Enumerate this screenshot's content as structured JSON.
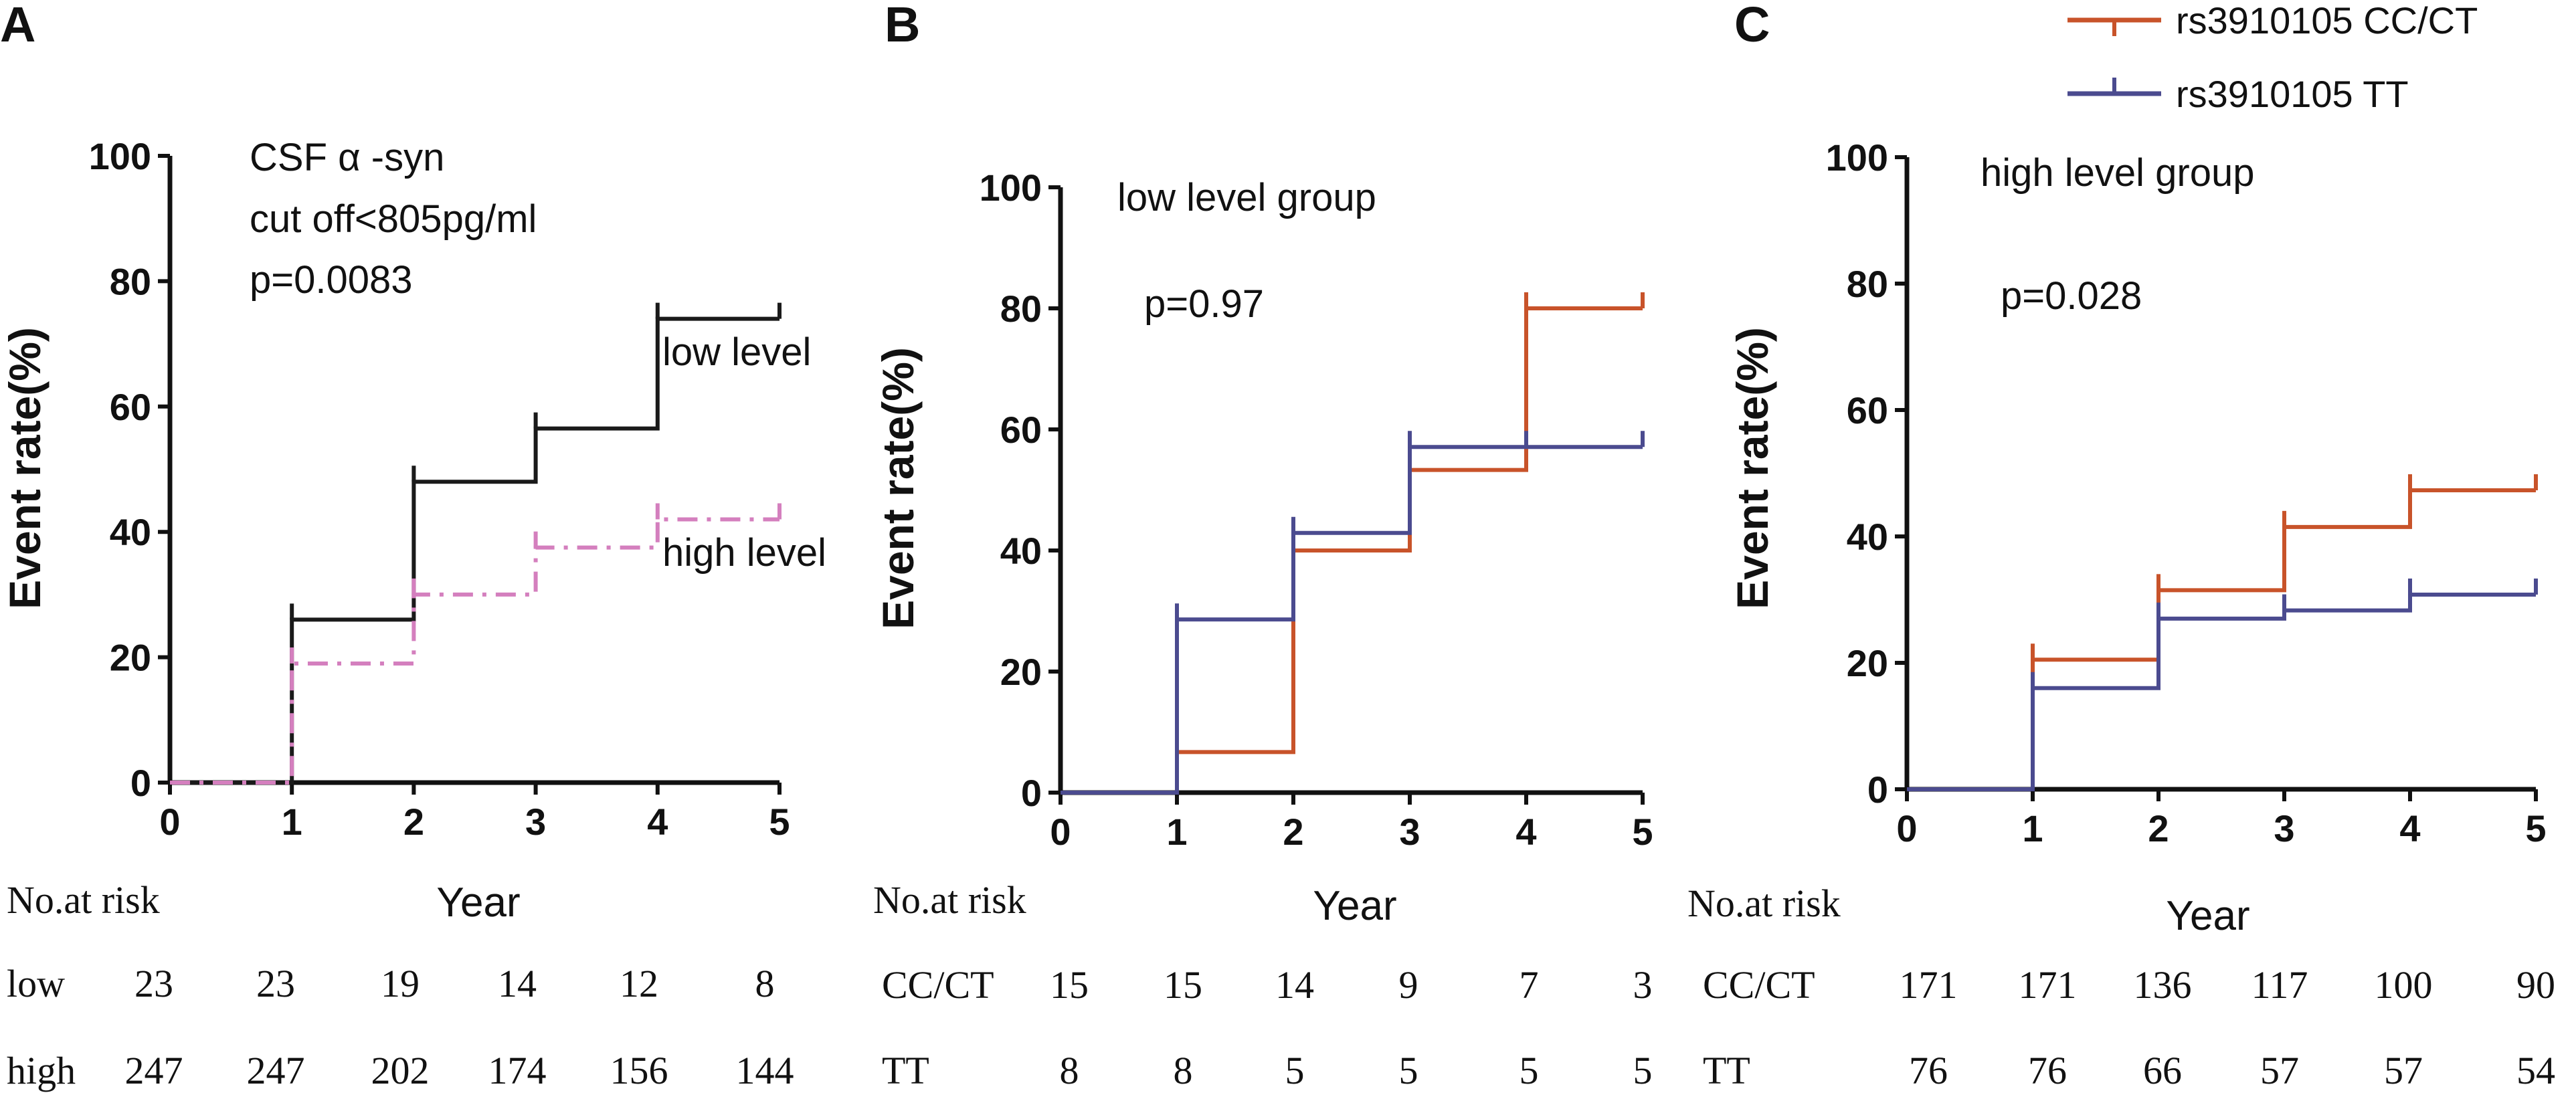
{
  "chart_data": [
    {
      "panel": "A",
      "type": "line",
      "step": true,
      "xlabel": "Year",
      "ylabel": "Event rate(%)",
      "xlim": [
        0,
        5
      ],
      "ylim": [
        0,
        100
      ],
      "xticks": [
        "0",
        "1",
        "2",
        "3",
        "4",
        "5"
      ],
      "yticks": [
        "0",
        "20",
        "40",
        "60",
        "80",
        "100"
      ],
      "annotations": [
        "CSF  α -syn",
        "cut off<805pg/ml",
        "p=0.0083"
      ],
      "series": [
        {
          "name": "low level",
          "color": "#1a1a1a",
          "dash": "solid",
          "x": [
            0,
            1,
            1,
            2,
            2,
            3,
            3,
            4,
            4,
            5
          ],
          "y": [
            0,
            0,
            26,
            26,
            48,
            48,
            56.5,
            56.5,
            74,
            74
          ]
        },
        {
          "name": "high level",
          "color": "#d47fbe",
          "dash": "dashdot",
          "x": [
            0,
            1,
            1,
            2,
            2,
            3,
            3,
            4,
            4,
            5
          ],
          "y": [
            0,
            0,
            19,
            19,
            30,
            30,
            37.5,
            37.5,
            42,
            42
          ]
        }
      ],
      "risk_table": {
        "header": "No.at risk",
        "rows": [
          {
            "label": "low",
            "values": [
              "23",
              "23",
              "19",
              "14",
              "12",
              "8"
            ]
          },
          {
            "label": "high",
            "values": [
              "247",
              "247",
              "202",
              "174",
              "156",
              "144"
            ]
          }
        ]
      }
    },
    {
      "panel": "B",
      "type": "line",
      "step": true,
      "xlabel": "Year",
      "ylabel": "Event rate(%)",
      "xlim": [
        0,
        5
      ],
      "ylim": [
        0,
        100
      ],
      "xticks": [
        "0",
        "1",
        "2",
        "3",
        "4",
        "5"
      ],
      "yticks": [
        "0",
        "20",
        "40",
        "60",
        "80",
        "100"
      ],
      "annotations": [
        "low level group",
        "p=0.97"
      ],
      "series": [
        {
          "name": "rs3910105 CC/CT",
          "color": "#c8532a",
          "dash": "solid",
          "x": [
            0,
            1,
            1,
            2,
            2,
            3,
            3,
            4,
            4,
            5
          ],
          "y": [
            0,
            0,
            6.7,
            6.7,
            40,
            40,
            53.3,
            53.3,
            80,
            80
          ]
        },
        {
          "name": "rs3910105 TT",
          "color": "#4b4b8f",
          "dash": "solid",
          "x": [
            0,
            1,
            1,
            2,
            2,
            3,
            3,
            4,
            4,
            5
          ],
          "y": [
            0,
            0,
            28.6,
            28.6,
            42.9,
            42.9,
            57.1,
            57.1,
            57.1,
            57.1
          ]
        }
      ],
      "risk_table": {
        "header": "No.at risk",
        "rows": [
          {
            "label": "CC/CT",
            "values": [
              "15",
              "15",
              "14",
              "9",
              "7",
              "3"
            ]
          },
          {
            "label": "TT",
            "values": [
              "8",
              "8",
              "5",
              "5",
              "5",
              "5"
            ]
          }
        ]
      }
    },
    {
      "panel": "C",
      "type": "line",
      "step": true,
      "xlabel": "Year",
      "ylabel": "Event rate(%)",
      "xlim": [
        0,
        5
      ],
      "ylim": [
        0,
        100
      ],
      "xticks": [
        "0",
        "1",
        "2",
        "3",
        "4",
        "5"
      ],
      "yticks": [
        "0",
        "20",
        "40",
        "60",
        "80",
        "100"
      ],
      "annotations": [
        "high level group",
        "p=0.028"
      ],
      "series": [
        {
          "name": "rs3910105 CC/CT",
          "color": "#c8532a",
          "dash": "solid",
          "x": [
            0,
            1,
            1,
            2,
            2,
            3,
            3,
            4,
            4,
            5
          ],
          "y": [
            0,
            0,
            20.5,
            20.5,
            31.5,
            31.5,
            41.5,
            41.5,
            47.3,
            47.3
          ]
        },
        {
          "name": "rs3910105 TT",
          "color": "#4b4b8f",
          "dash": "solid",
          "x": [
            0,
            1,
            1,
            2,
            2,
            3,
            3,
            4,
            4,
            5
          ],
          "y": [
            0,
            0,
            16,
            16,
            27,
            27,
            28.3,
            28.3,
            30.8,
            30.8
          ]
        }
      ],
      "risk_table": {
        "header": "No.at risk",
        "rows": [
          {
            "label": "CC/CT",
            "values": [
              "171",
              "171",
              "136",
              "117",
              "100",
              "90"
            ]
          },
          {
            "label": "TT",
            "values": [
              "76",
              "76",
              "66",
              "57",
              "57",
              "54"
            ]
          }
        ]
      }
    }
  ],
  "legend": [
    {
      "label": "rs3910105 CC/CT",
      "color": "#c8532a"
    },
    {
      "label": "rs3910105 TT",
      "color": "#4b4b8f"
    }
  ]
}
